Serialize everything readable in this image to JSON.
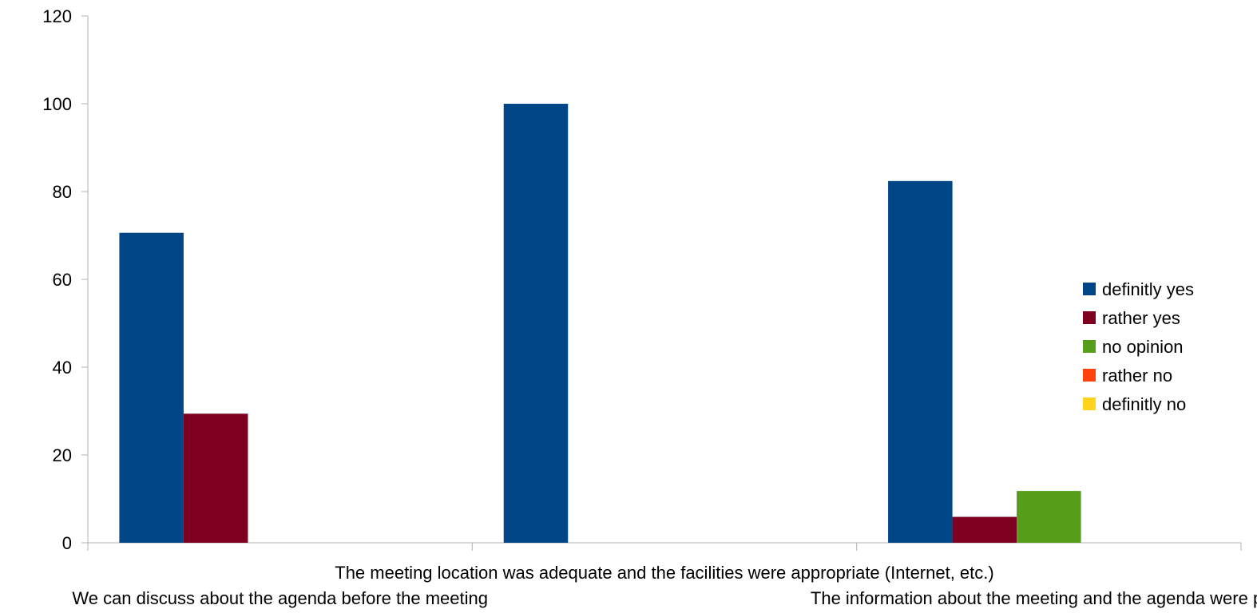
{
  "chart_data": {
    "type": "bar",
    "title": "",
    "xlabel": "",
    "ylabel": "",
    "ylim": [
      0,
      120
    ],
    "yticks": [
      "0",
      "20",
      "40",
      "60",
      "80",
      "100",
      "120"
    ],
    "grid": false,
    "legend_position": "right",
    "categories": [
      "We can discuss about the agenda before the meeting",
      "The meeting location was adequate and the facilities were appropriate (Internet, etc.)",
      "The information about the meeting and the agenda were prov"
    ],
    "series": [
      {
        "name": "definitly yes",
        "color": "#004586",
        "values": [
          70.6,
          100,
          82.4
        ]
      },
      {
        "name": "rather yes",
        "color": "#7e0021",
        "values": [
          29.4,
          0,
          5.9
        ]
      },
      {
        "name": "no opinion",
        "color": "#579d1c",
        "values": [
          0,
          0,
          11.8
        ]
      },
      {
        "name": "rather no",
        "color": "#ff420e",
        "values": [
          0,
          0,
          0
        ]
      },
      {
        "name": "definitly no",
        "color": "#ffd320",
        "values": [
          0,
          0,
          0
        ]
      }
    ]
  }
}
